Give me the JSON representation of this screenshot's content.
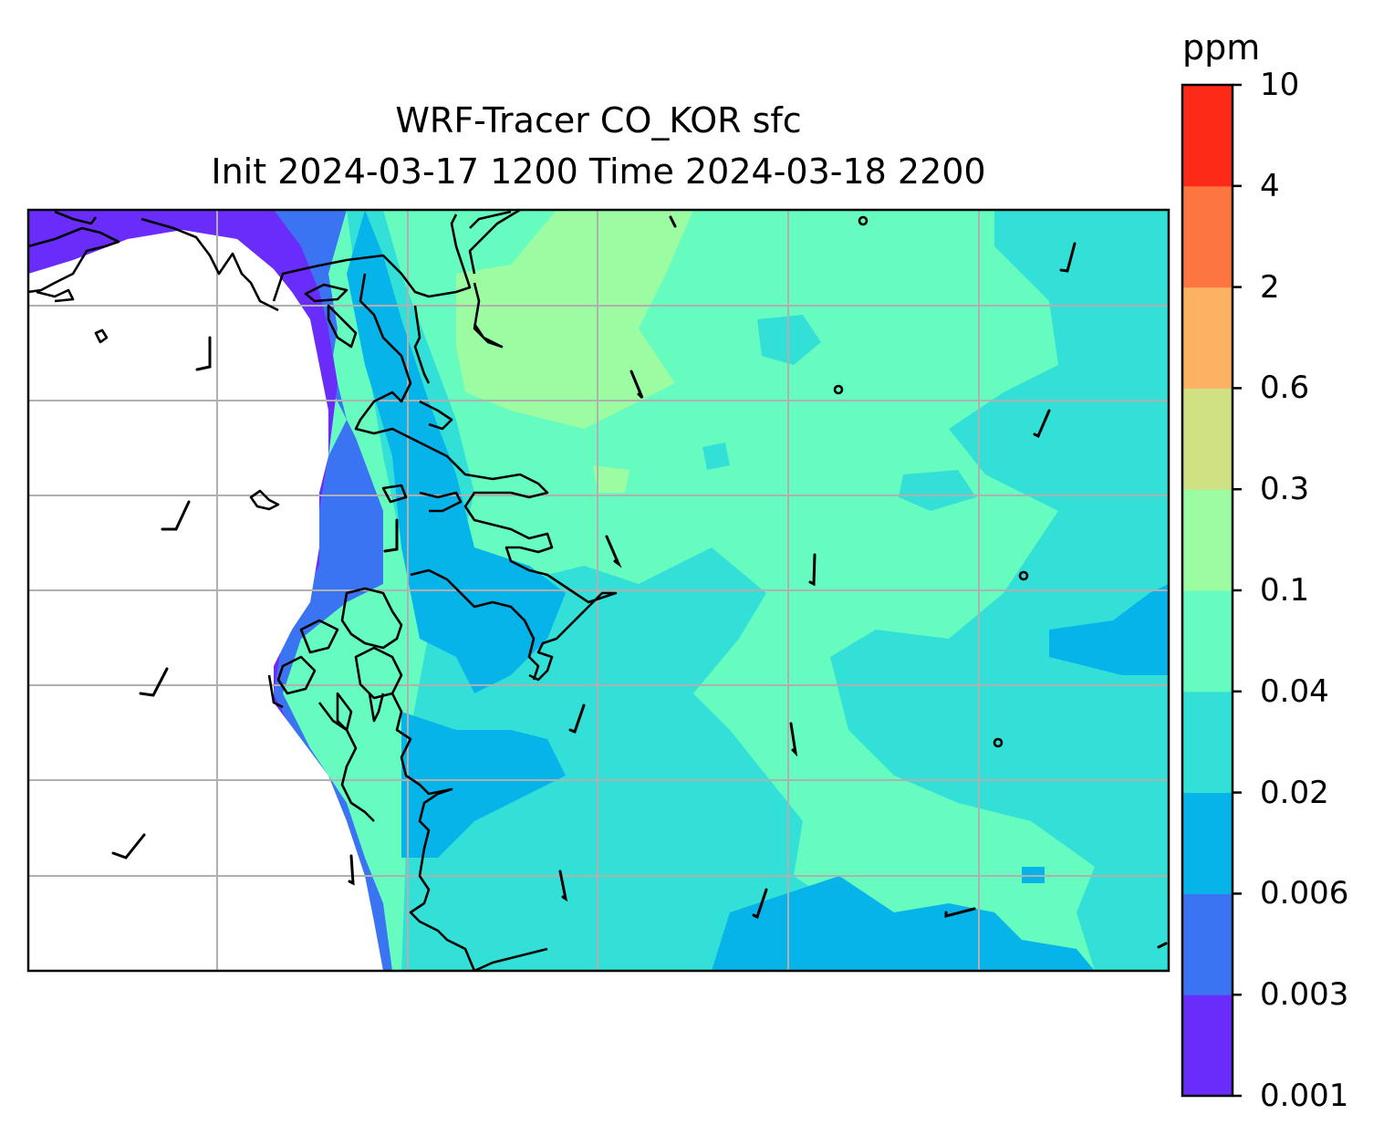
{
  "title": {
    "line1": "WRF-Tracer CO_KOR sfc",
    "line2": "Init 2024-03-17 1200 Time 2024-03-18 2200"
  },
  "colorbar": {
    "unit": "ppm",
    "levels": [
      "0.001",
      "0.003",
      "0.006",
      "0.02",
      "0.04",
      "0.1",
      "0.3",
      "0.6",
      "2",
      "4",
      "10"
    ],
    "colors": [
      "#6a2cfb",
      "#3b74f2",
      "#06b4ea",
      "#33e0d8",
      "#66fcbf",
      "#9bfca2",
      "#d0e183",
      "#fdb163",
      "#fd7640",
      "#fd2a17"
    ]
  },
  "map": {
    "ocean_color": "#ffffff",
    "coastline_color": "#000000",
    "gridline_color": "#b0b0b0",
    "gridlines": true,
    "wind_barbs": true
  }
}
